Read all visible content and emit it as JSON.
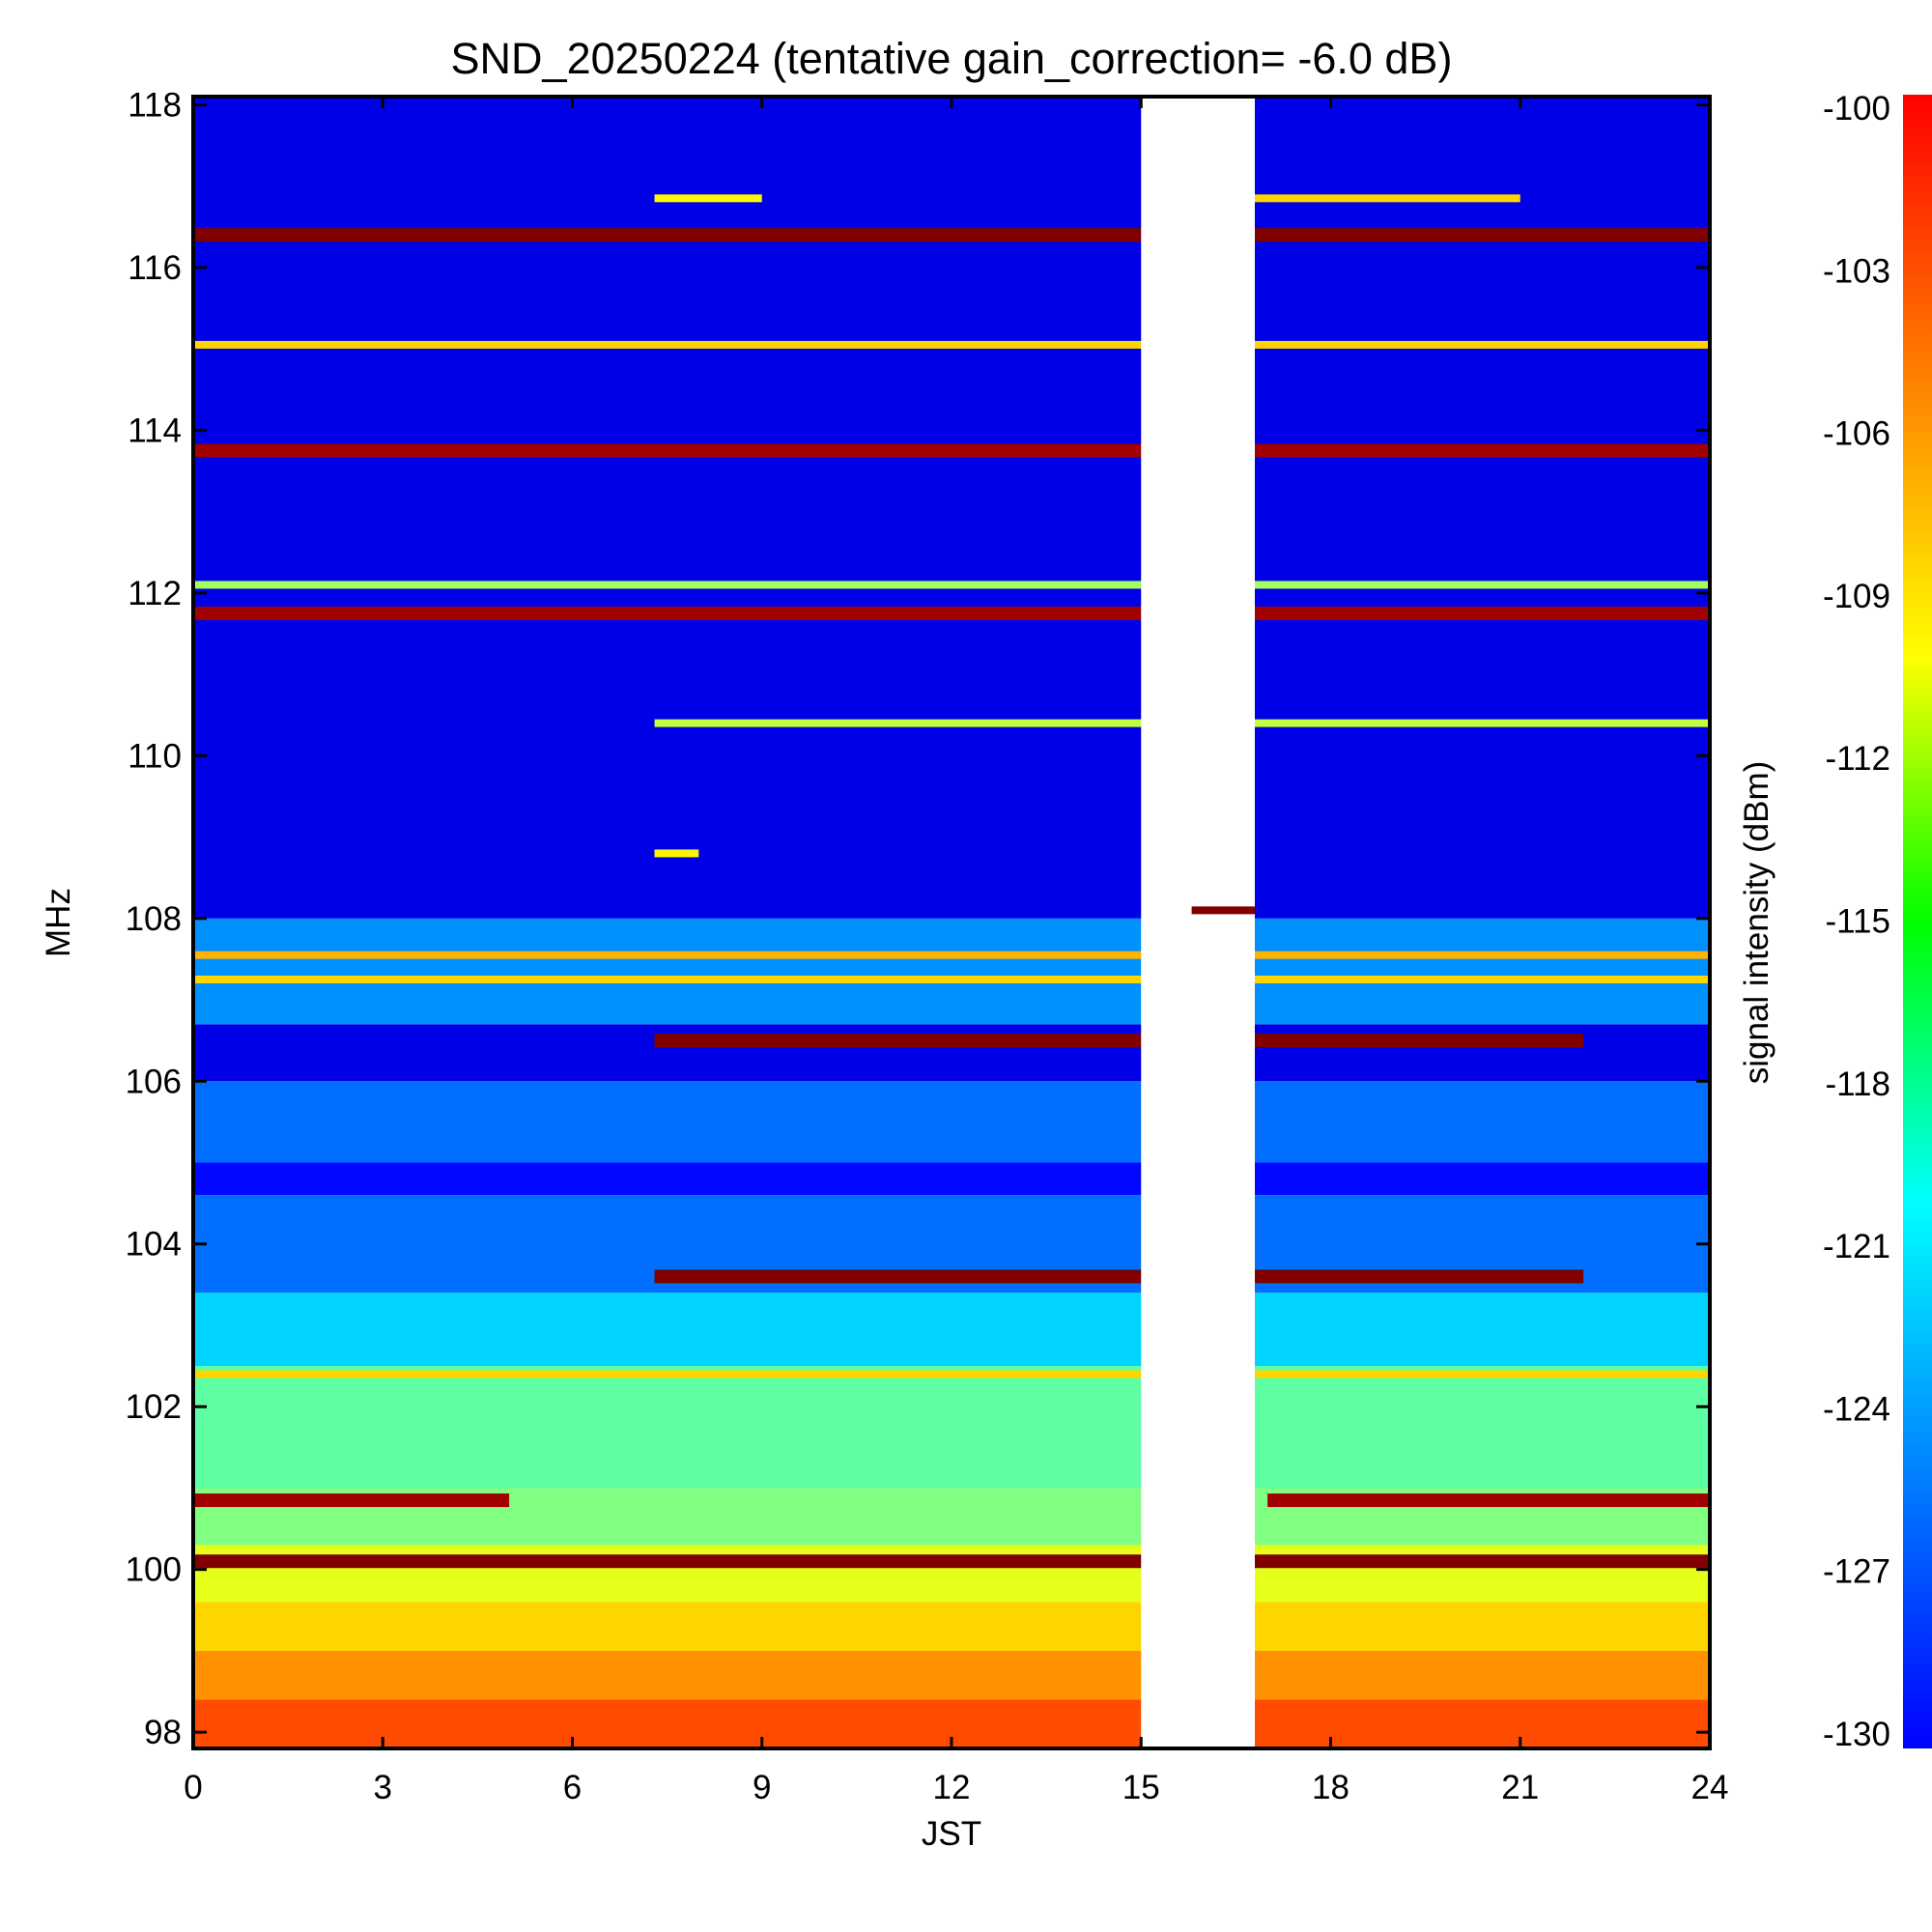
{
  "chart_data": {
    "type": "heatmap",
    "title": "SND_20250224 (tentative gain_correction= -6.0 dB)",
    "xlabel": "JST",
    "ylabel": "MHz",
    "colorbar_label": "signal intensity (dBm)",
    "xlim": [
      0,
      24
    ],
    "ylim": [
      97.8,
      118.1
    ],
    "x_ticks": [
      0,
      3,
      6,
      9,
      12,
      15,
      18,
      21,
      24
    ],
    "y_ticks": [
      98,
      100,
      102,
      104,
      106,
      108,
      110,
      112,
      114,
      116,
      118
    ],
    "colorbar_range": [
      -130,
      -100
    ],
    "colorbar_ticks": [
      -100,
      -103,
      -106,
      -109,
      -112,
      -115,
      -118,
      -121,
      -124,
      -127,
      -130
    ],
    "colormap": "jet",
    "data_gap_jst": [
      15.0,
      16.8
    ],
    "background_bands": [
      {
        "freq": [
          97.8,
          98.4
        ],
        "level": -106
      },
      {
        "freq": [
          98.4,
          99.0
        ],
        "level": -108
      },
      {
        "freq": [
          99.0,
          99.6
        ],
        "level": -110
      },
      {
        "freq": [
          99.6,
          100.3
        ],
        "level": -112
      },
      {
        "freq": [
          100.3,
          101.0
        ],
        "level": -115
      },
      {
        "freq": [
          101.0,
          102.5
        ],
        "level": -116
      },
      {
        "freq": [
          102.5,
          103.4
        ],
        "level": -120
      },
      {
        "freq": [
          103.4,
          104.6
        ],
        "level": -123
      },
      {
        "freq": [
          104.6,
          105.0
        ],
        "level": -126
      },
      {
        "freq": [
          105.0,
          106.0
        ],
        "level": -123
      },
      {
        "freq": [
          106.0,
          106.7
        ],
        "level": -127
      },
      {
        "freq": [
          106.7,
          108.0
        ],
        "level": -122
      },
      {
        "freq": [
          108.0,
          118.1
        ],
        "level": -127
      }
    ],
    "signals": [
      {
        "freq": 100.1,
        "t": [
          0,
          24
        ],
        "level": -100
      },
      {
        "freq": 100.85,
        "t": [
          0,
          5.0
        ],
        "level": -101
      },
      {
        "freq": 100.85,
        "t": [
          17,
          24
        ],
        "level": -101
      },
      {
        "freq": 103.6,
        "t": [
          7.3,
          22.0
        ],
        "level": -100
      },
      {
        "freq": 106.5,
        "t": [
          7.3,
          22.0
        ],
        "level": -100
      },
      {
        "freq": 107.25,
        "t": [
          0,
          24
        ],
        "level": -110
      },
      {
        "freq": 107.55,
        "t": [
          0,
          24
        ],
        "level": -109
      },
      {
        "freq": 102.4,
        "t": [
          0,
          24
        ],
        "level": -110
      },
      {
        "freq": 108.1,
        "t": [
          15.8,
          16.8
        ],
        "level": -100
      },
      {
        "freq": 111.75,
        "t": [
          0,
          24
        ],
        "level": -101
      },
      {
        "freq": 112.1,
        "t": [
          0,
          24
        ],
        "level": -114
      },
      {
        "freq": 113.75,
        "t": [
          0,
          24
        ],
        "level": -101
      },
      {
        "freq": 115.05,
        "t": [
          0,
          24
        ],
        "level": -110
      },
      {
        "freq": 116.4,
        "t": [
          0,
          24
        ],
        "level": -100
      },
      {
        "freq": 116.85,
        "t": [
          7.3,
          9.0
        ],
        "level": -111
      },
      {
        "freq": 116.85,
        "t": [
          16.8,
          21.0
        ],
        "level": -110
      },
      {
        "freq": 110.4,
        "t": [
          7.3,
          24
        ],
        "level": -113
      },
      {
        "freq": 108.8,
        "t": [
          7.3,
          8.0
        ],
        "level": -111
      }
    ]
  }
}
